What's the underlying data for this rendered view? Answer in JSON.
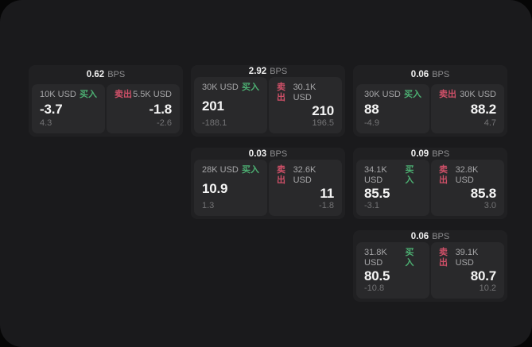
{
  "labels": {
    "bps_unit": "BPS",
    "buy": "买入",
    "sell": "卖出"
  },
  "colors": {
    "buy_green": "#4caf72",
    "sell_red": "#cf5068"
  },
  "cards": [
    {
      "bps": "0.62",
      "buy": {
        "amount": "10K USD",
        "price": "-3.7",
        "change": "4.3"
      },
      "sell": {
        "amount": "5.5K USD",
        "price": "-1.8",
        "change": "-2.6"
      }
    },
    {
      "bps": "2.92",
      "buy": {
        "amount": "30K USD",
        "price": "201",
        "change": "-188.1"
      },
      "sell": {
        "amount": "30.1K USD",
        "price": "210",
        "change": "196.5"
      }
    },
    {
      "bps": "0.06",
      "buy": {
        "amount": "30K USD",
        "price": "88",
        "change": "-4.9"
      },
      "sell": {
        "amount": "30K USD",
        "price": "88.2",
        "change": "4.7"
      }
    },
    {
      "bps": "0.03",
      "buy": {
        "amount": "28K USD",
        "price": "10.9",
        "change": "1.3"
      },
      "sell": {
        "amount": "32.6K USD",
        "price": "11",
        "change": "-1.8"
      }
    },
    {
      "bps": "0.09",
      "buy": {
        "amount": "34.1K USD",
        "price": "85.5",
        "change": "-3.1"
      },
      "sell": {
        "amount": "32.8K USD",
        "price": "85.8",
        "change": "3.0"
      }
    },
    {
      "bps": "0.06",
      "buy": {
        "amount": "31.8K USD",
        "price": "80.5",
        "change": "-10.8"
      },
      "sell": {
        "amount": "39.1K USD",
        "price": "80.7",
        "change": "10.2"
      }
    }
  ]
}
